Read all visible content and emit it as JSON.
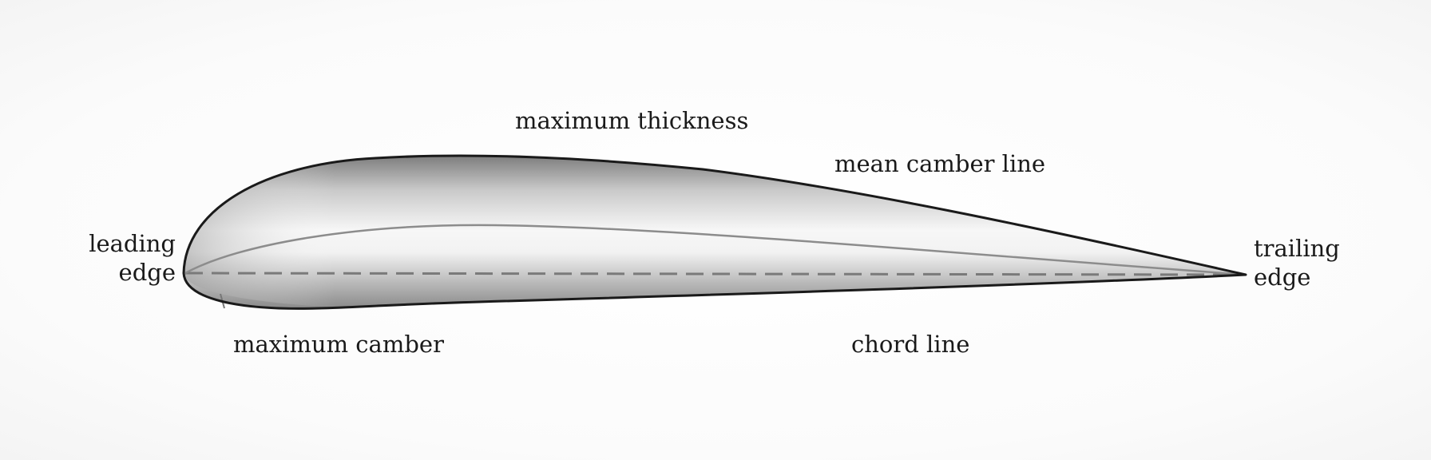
{
  "labels": {
    "maximum_thickness": "maximum thickness",
    "mean_camber_line": "mean camber line",
    "leading_edge_1": "leading",
    "leading_edge_2": "edge",
    "trailing_edge_1": "trailing",
    "trailing_edge_2": "edge",
    "maximum_camber": "maximum camber",
    "chord_line": "chord line"
  },
  "colors": {
    "outline": "#1a1a1a",
    "camber_line": "#8c8c8c",
    "chord_line": "#7a7a7a",
    "fill_light": "#ffffff",
    "fill_dark": "#8a8a8a"
  }
}
